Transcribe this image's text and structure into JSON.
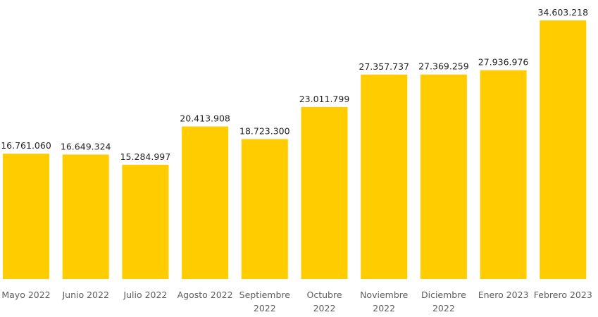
{
  "chart_data": {
    "type": "bar",
    "title": "",
    "xlabel": "",
    "ylabel": "",
    "categories": [
      [
        "Mayo 2022"
      ],
      [
        "Junio 2022"
      ],
      [
        "Julio 2022"
      ],
      [
        "Agosto 2022"
      ],
      [
        "Septiembre",
        "2022"
      ],
      [
        "Octubre",
        "2022"
      ],
      [
        "Noviembre",
        "2022"
      ],
      [
        "Diciembre",
        "2022"
      ],
      [
        "Enero 2023"
      ],
      [
        "Febrero 2023"
      ]
    ],
    "values": [
      16761060,
      16649324,
      15284997,
      20413908,
      18723300,
      23011799,
      27357737,
      27369259,
      27936976,
      34603218
    ],
    "data_labels": [
      "16.761.060",
      "16.649.324",
      "15.284.997",
      "20.413.908",
      "18.723.300",
      "23.011.799",
      "27.357.737",
      "27.369.259",
      "27.936.976",
      "34.603.218"
    ],
    "ylim": [
      0,
      34603218
    ],
    "grid": false,
    "legend": "none",
    "colors": {
      "bar": "#FFCC00"
    }
  }
}
